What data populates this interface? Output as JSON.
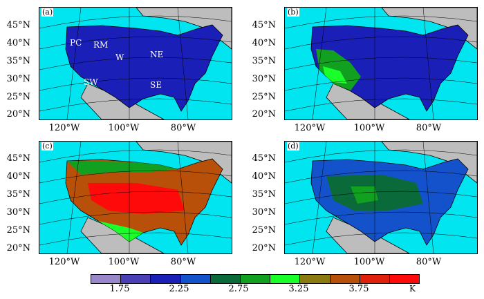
{
  "panels": [
    {
      "tag": "(a)",
      "regions": [
        "PC",
        "RM",
        "W",
        "NE",
        "SW",
        "SE"
      ]
    },
    {
      "tag": "(b)",
      "regions": []
    },
    {
      "tag": "(c)",
      "regions": []
    },
    {
      "tag": "(d)",
      "regions": []
    }
  ],
  "lat_labels": [
    "45°N",
    "40°N",
    "35°N",
    "30°N",
    "25°N",
    "20°N"
  ],
  "lon_labels": [
    "120°W",
    "100°W",
    "80°W"
  ],
  "colorbar": {
    "colors": [
      "#9a87c9",
      "#4a3fb5",
      "#1a1fb8",
      "#1452cc",
      "#0a6a3a",
      "#12a020",
      "#1aff2a",
      "#8a7a10",
      "#b8500a",
      "#e0200a",
      "#ff0a0a"
    ],
    "tick_labels": [
      "1.75",
      "2.25",
      "2.75",
      "3.25",
      "3.75"
    ],
    "unit": "K"
  },
  "colors": {
    "ocean": "#00e5ef",
    "land_other": "#bdbdbd",
    "border": "#000000"
  }
}
